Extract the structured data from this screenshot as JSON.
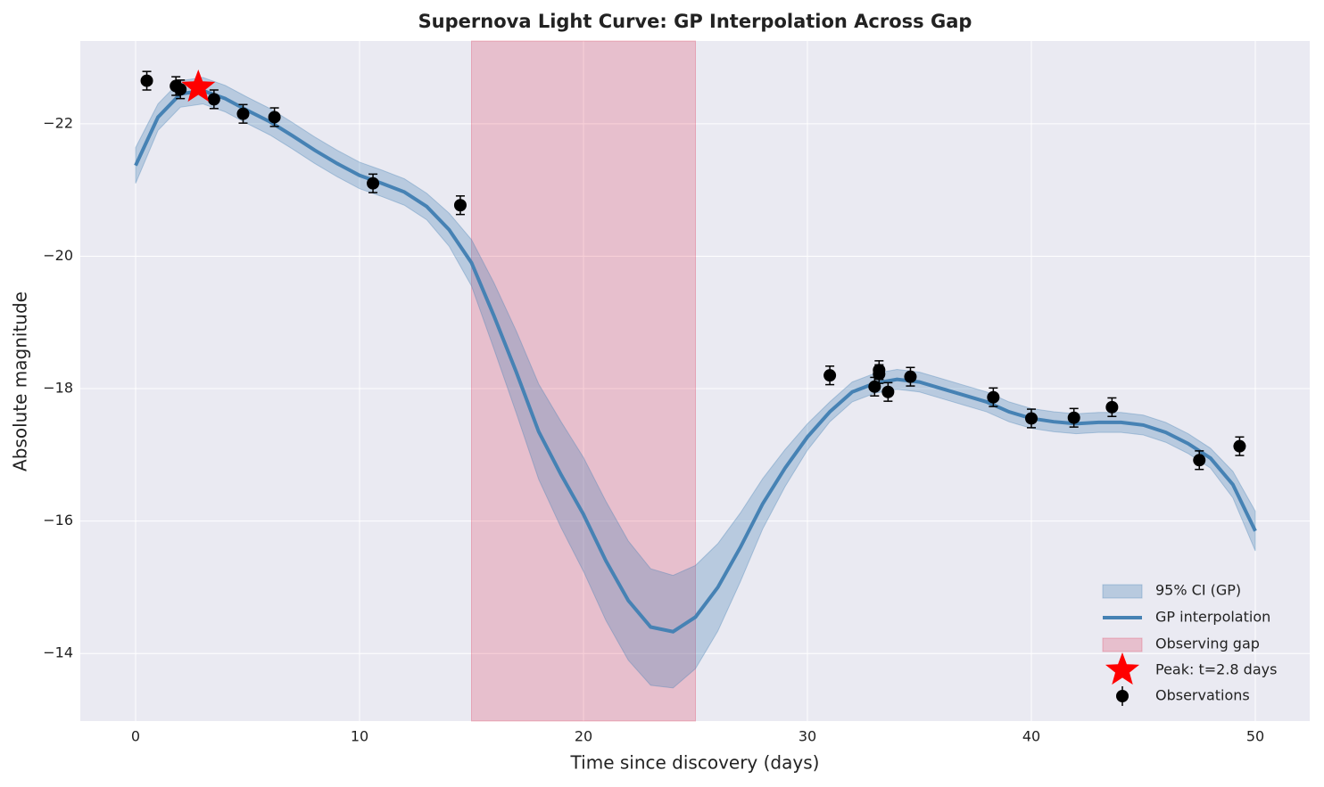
{
  "chart_data": {
    "type": "line",
    "title": "Supernova Light Curve: GP Interpolation Across Gap",
    "xlabel": "Time since discovery (days)",
    "ylabel": "Absolute magnitude",
    "xlim": [
      -2.47,
      52.43
    ],
    "ylim": [
      -12.98,
      -23.25
    ],
    "xticks": [
      0,
      10,
      20,
      30,
      40,
      50
    ],
    "yticks": [
      {
        "value": -22,
        "label": "−22"
      },
      {
        "value": -20,
        "label": "−20"
      },
      {
        "value": -18,
        "label": "−18"
      },
      {
        "value": -16,
        "label": "−16"
      },
      {
        "value": -14,
        "label": "−14"
      }
    ],
    "grid": true,
    "legend": "lower right",
    "series": [
      {
        "name": "GP interpolation",
        "ci_name": "95% CI (GP)",
        "color": "#4682b4",
        "x": [
          0,
          1,
          2,
          3,
          4,
          5,
          6,
          7,
          8,
          9,
          10,
          11,
          12,
          13,
          14,
          15,
          16,
          17,
          18,
          19,
          20,
          21,
          22,
          23,
          24,
          25,
          26,
          27,
          28,
          29,
          30,
          31,
          32,
          33,
          34,
          35,
          36,
          37,
          38,
          39,
          40,
          41,
          42,
          43,
          44,
          45,
          46,
          47,
          48,
          49,
          50
        ],
        "values": [
          -21.37,
          -22.1,
          -22.45,
          -22.5,
          -22.38,
          -22.2,
          -22.03,
          -21.82,
          -21.6,
          -21.4,
          -21.22,
          -21.1,
          -20.97,
          -20.75,
          -20.4,
          -19.9,
          -19.1,
          -18.25,
          -17.35,
          -16.7,
          -16.1,
          -15.4,
          -14.8,
          -14.4,
          -14.33,
          -14.55,
          -15.0,
          -15.6,
          -16.26,
          -16.8,
          -17.27,
          -17.65,
          -17.95,
          -18.08,
          -18.14,
          -18.1,
          -18.0,
          -17.9,
          -17.8,
          -17.65,
          -17.55,
          -17.5,
          -17.47,
          -17.49,
          -17.49,
          -17.45,
          -17.34,
          -17.17,
          -16.95,
          -16.55,
          -15.85
        ],
        "ci": [
          0.27,
          0.2,
          0.2,
          0.2,
          0.2,
          0.2,
          0.2,
          0.2,
          0.2,
          0.2,
          0.2,
          0.2,
          0.2,
          0.2,
          0.25,
          0.35,
          0.5,
          0.62,
          0.72,
          0.8,
          0.86,
          0.9,
          0.9,
          0.88,
          0.85,
          0.78,
          0.66,
          0.52,
          0.38,
          0.28,
          0.2,
          0.15,
          0.15,
          0.15,
          0.15,
          0.15,
          0.15,
          0.15,
          0.15,
          0.15,
          0.15,
          0.15,
          0.15,
          0.15,
          0.15,
          0.15,
          0.15,
          0.15,
          0.15,
          0.2,
          0.3
        ]
      }
    ],
    "gap": {
      "name": "Observing gap",
      "color": "#dc143c",
      "x": [
        15,
        25
      ]
    },
    "peak": {
      "name": "Peak: t=2.8 days",
      "color": "#ff0000",
      "x": 2.8,
      "y": -22.55
    },
    "observations": {
      "name": "Observations",
      "color": "#000000",
      "x": [
        0.5,
        1.8,
        2.0,
        3.5,
        4.8,
        6.2,
        10.6,
        14.5,
        31.0,
        33.0,
        33.2,
        33.2,
        33.6,
        34.6,
        38.3,
        40.0,
        41.9,
        43.6,
        47.5,
        49.3
      ],
      "values": [
        -22.65,
        -22.57,
        -22.52,
        -22.37,
        -22.15,
        -22.1,
        -21.1,
        -20.77,
        -18.2,
        -18.03,
        -18.22,
        -18.28,
        -17.95,
        -18.18,
        -17.87,
        -17.55,
        -17.56,
        -17.72,
        -16.92,
        -17.13
      ],
      "errors": [
        0.14,
        0.14,
        0.14,
        0.14,
        0.14,
        0.14,
        0.14,
        0.14,
        0.14,
        0.14,
        0.14,
        0.14,
        0.14,
        0.14,
        0.14,
        0.14,
        0.14,
        0.14,
        0.14,
        0.14
      ]
    }
  }
}
